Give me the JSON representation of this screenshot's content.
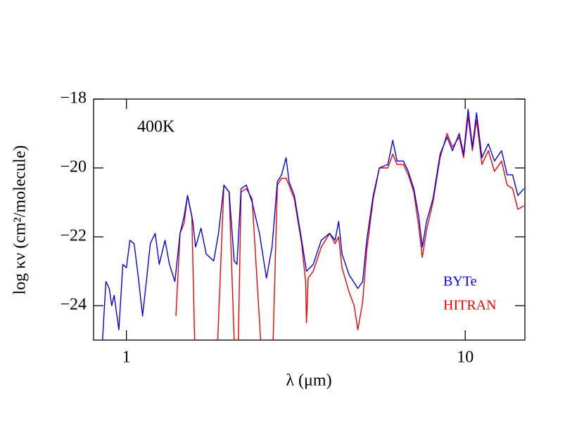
{
  "chart_data": {
    "type": "line",
    "annotation": "400K",
    "x_label": "λ (μm)",
    "y_label": "log κν (cm²/molecule)",
    "log_x": true,
    "legend": "lower right",
    "xlim": [
      0.8,
      15
    ],
    "xticks": [
      1,
      10
    ],
    "ylim": [
      -25,
      -18
    ],
    "yticks": [
      {
        "value": -18,
        "label": "−18"
      },
      {
        "value": -20,
        "label": "−20"
      },
      {
        "value": -22,
        "label": "−22"
      },
      {
        "value": -24,
        "label": "−24"
      }
    ],
    "series": [
      {
        "name": "BYTe",
        "color": "#0000ee",
        "x": [
          0.85,
          0.87,
          0.89,
          0.905,
          0.92,
          0.95,
          0.976,
          1.0,
          1.024,
          1.054,
          1.085,
          1.116,
          1.148,
          1.176,
          1.216,
          1.25,
          1.3,
          1.34,
          1.39,
          1.44,
          1.48,
          1.515,
          1.57,
          1.6,
          1.66,
          1.72,
          1.81,
          1.87,
          1.94,
          2.01,
          2.08,
          2.12,
          2.18,
          2.26,
          2.35,
          2.47,
          2.59,
          2.69,
          2.79,
          2.87,
          2.96,
          3.02,
          3.13,
          3.29,
          3.4,
          3.56,
          3.76,
          3.98,
          4.13,
          4.23,
          4.33,
          4.54,
          4.82,
          4.98,
          5.12,
          5.35,
          5.58,
          5.91,
          6.11,
          6.29,
          6.57,
          6.79,
          7.05,
          7.29,
          7.47,
          7.69,
          8.03,
          8.43,
          8.84,
          9.17,
          9.6,
          9.89,
          10.2,
          10.5,
          10.8,
          11.2,
          11.7,
          12.2,
          12.8,
          13.3,
          13.8,
          14.3,
          14.9
        ],
        "values": [
          -25,
          -23.3,
          -23.5,
          -24.0,
          -23.7,
          -24.7,
          -22.8,
          -22.9,
          -22.1,
          -22.2,
          -23.2,
          -24.3,
          -23.2,
          -22.2,
          -21.9,
          -22.8,
          -22.1,
          -22.8,
          -23.3,
          -21.9,
          -21.4,
          -20.8,
          -21.55,
          -22.3,
          -21.75,
          -22.5,
          -22.7,
          -21.9,
          -20.5,
          -20.7,
          -22.7,
          -22.8,
          -20.6,
          -20.5,
          -21.0,
          -21.9,
          -23.2,
          -22.3,
          -20.4,
          -20.2,
          -19.7,
          -20.4,
          -20.8,
          -22.1,
          -23.0,
          -22.8,
          -22.1,
          -21.9,
          -22.1,
          -21.55,
          -22.5,
          -23.1,
          -23.5,
          -23.3,
          -22.1,
          -20.8,
          -20.0,
          -19.9,
          -19.2,
          -19.8,
          -19.8,
          -20.1,
          -20.6,
          -21.4,
          -22.3,
          -21.55,
          -20.9,
          -19.6,
          -19.1,
          -19.5,
          -19.0,
          -19.6,
          -18.3,
          -19.4,
          -18.4,
          -19.7,
          -19.3,
          -19.8,
          -19.5,
          -20.2,
          -20.2,
          -20.8,
          -20.6
        ]
      },
      {
        "name": "HITRAN",
        "color": "#ee0000",
        "x": [
          1.4,
          1.44,
          1.48,
          1.515,
          1.56,
          1.59,
          1.7,
          1.86,
          1.94,
          2.01,
          2.08,
          2.11,
          2.14,
          2.18,
          2.26,
          2.35,
          2.49,
          2.6,
          2.71,
          2.79,
          2.87,
          2.96,
          3.02,
          3.13,
          3.29,
          3.38,
          3.4,
          3.44,
          3.56,
          3.76,
          3.98,
          4.13,
          4.23,
          4.33,
          4.54,
          4.7,
          4.82,
          4.98,
          5.12,
          5.35,
          5.58,
          5.91,
          6.11,
          6.29,
          6.57,
          6.79,
          7.05,
          7.29,
          7.47,
          7.69,
          8.03,
          8.43,
          8.84,
          9.17,
          9.6,
          9.89,
          10.2,
          10.5,
          10.8,
          11.2,
          11.7,
          12.2,
          12.8,
          13.3,
          13.8,
          14.3,
          14.9
        ],
        "values": [
          -24.3,
          -21.9,
          -21.6,
          -20.8,
          -21.4,
          -25,
          null,
          -25,
          -20.5,
          -20.7,
          -25,
          null,
          -25,
          -20.7,
          -20.6,
          -20.9,
          -25,
          null,
          -25,
          -20.5,
          -20.3,
          -20.3,
          -20.5,
          -20.9,
          -22.2,
          -23.3,
          -24.5,
          -23.2,
          -23.0,
          -22.3,
          -21.9,
          -22.2,
          -22.0,
          -22.9,
          -23.6,
          -24.0,
          -24.7,
          -23.9,
          -22.4,
          -20.9,
          -20.0,
          -20.0,
          -19.6,
          -19.9,
          -19.9,
          -20.2,
          -20.7,
          -21.7,
          -22.6,
          -21.8,
          -21.0,
          -19.7,
          -19.0,
          -19.4,
          -19.1,
          -19.7,
          -18.5,
          -19.5,
          -18.6,
          -19.9,
          -19.5,
          -20.1,
          -19.8,
          -20.5,
          -20.6,
          -21.2,
          -21.1
        ]
      }
    ]
  }
}
